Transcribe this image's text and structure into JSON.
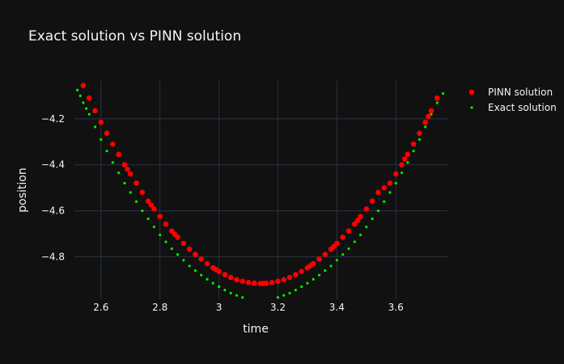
{
  "chart_data": {
    "type": "scatter",
    "title": "Exact solution vs PINN solution",
    "xlabel": "time",
    "ylabel": "position",
    "xlim": [
      2.51,
      3.775
    ],
    "ylim": [
      -4.985,
      -4.035
    ],
    "x_ticks": [
      2.6,
      2.8,
      3.0,
      3.2,
      3.4,
      3.6
    ],
    "x_tick_labels": [
      "2.6",
      "2.8",
      "3",
      "3.2",
      "3.4",
      "3.6"
    ],
    "y_ticks": [
      -4.2,
      -4.4,
      -4.6,
      -4.8
    ],
    "y_tick_labels": [
      "−4.2",
      "−4.4",
      "−4.6",
      "−4.8"
    ],
    "grid": true,
    "legend_position": "top-right",
    "series": [
      {
        "name": "PINN solution",
        "color": "#ff0000",
        "marker": "large-dot",
        "x": [
          2.54,
          2.56,
          2.58,
          2.6,
          2.62,
          2.64,
          2.66,
          2.68,
          2.69,
          2.7,
          2.72,
          2.74,
          2.76,
          2.77,
          2.78,
          2.8,
          2.82,
          2.84,
          2.85,
          2.86,
          2.88,
          2.9,
          2.92,
          2.94,
          2.96,
          2.98,
          2.99,
          3.0,
          3.02,
          3.04,
          3.06,
          3.08,
          3.1,
          3.12,
          3.14,
          3.15,
          3.16,
          3.18,
          3.2,
          3.22,
          3.24,
          3.26,
          3.28,
          3.3,
          3.31,
          3.32,
          3.34,
          3.36,
          3.38,
          3.39,
          3.4,
          3.42,
          3.44,
          3.46,
          3.47,
          3.48,
          3.5,
          3.52,
          3.54,
          3.56,
          3.58,
          3.6,
          3.62,
          3.63,
          3.64,
          3.66,
          3.68,
          3.7,
          3.71,
          3.72,
          3.74
        ],
        "y": [
          -4.055,
          -4.11,
          -4.165,
          -4.215,
          -4.263,
          -4.31,
          -4.355,
          -4.4,
          -4.42,
          -4.44,
          -4.48,
          -4.52,
          -4.558,
          -4.575,
          -4.592,
          -4.625,
          -4.658,
          -4.688,
          -4.702,
          -4.715,
          -4.742,
          -4.767,
          -4.79,
          -4.81,
          -4.83,
          -4.848,
          -4.856,
          -4.864,
          -4.878,
          -4.89,
          -4.9,
          -4.907,
          -4.912,
          -4.915,
          -4.916,
          -4.916,
          -4.915,
          -4.912,
          -4.907,
          -4.9,
          -4.89,
          -4.878,
          -4.864,
          -4.848,
          -4.839,
          -4.83,
          -4.81,
          -4.79,
          -4.767,
          -4.755,
          -4.742,
          -4.715,
          -4.688,
          -4.658,
          -4.642,
          -4.625,
          -4.592,
          -4.558,
          -4.52,
          -4.5,
          -4.48,
          -4.44,
          -4.4,
          -4.375,
          -4.355,
          -4.31,
          -4.263,
          -4.215,
          -4.19,
          -4.165,
          -4.11
        ]
      },
      {
        "name": "Exact solution",
        "color": "#00ee00",
        "marker": "small-dot",
        "x": [
          2.52,
          2.53,
          2.54,
          2.55,
          2.56,
          2.58,
          2.6,
          2.62,
          2.64,
          2.66,
          2.68,
          2.7,
          2.72,
          2.74,
          2.76,
          2.78,
          2.8,
          2.82,
          2.84,
          2.86,
          2.88,
          2.9,
          2.92,
          2.94,
          2.96,
          2.98,
          3.0,
          3.02,
          3.04,
          3.06,
          3.08,
          3.2,
          3.22,
          3.24,
          3.26,
          3.28,
          3.3,
          3.32,
          3.34,
          3.36,
          3.38,
          3.4,
          3.42,
          3.44,
          3.46,
          3.48,
          3.5,
          3.52,
          3.54,
          3.56,
          3.58,
          3.6,
          3.62,
          3.64,
          3.66,
          3.68,
          3.7,
          3.72,
          3.74,
          3.76
        ],
        "y": [
          -4.075,
          -4.1,
          -4.13,
          -4.155,
          -4.18,
          -4.235,
          -4.29,
          -4.34,
          -4.39,
          -4.435,
          -4.48,
          -4.52,
          -4.56,
          -4.6,
          -4.635,
          -4.67,
          -4.705,
          -4.735,
          -4.765,
          -4.79,
          -4.815,
          -4.84,
          -4.86,
          -4.88,
          -4.898,
          -4.915,
          -4.93,
          -4.945,
          -4.958,
          -4.968,
          -4.977,
          -4.977,
          -4.968,
          -4.958,
          -4.945,
          -4.93,
          -4.915,
          -4.898,
          -4.88,
          -4.86,
          -4.84,
          -4.815,
          -4.79,
          -4.765,
          -4.735,
          -4.705,
          -4.67,
          -4.635,
          -4.6,
          -4.56,
          -4.52,
          -4.48,
          -4.435,
          -4.39,
          -4.34,
          -4.29,
          -4.235,
          -4.18,
          -4.13,
          -4.09
        ]
      }
    ]
  }
}
